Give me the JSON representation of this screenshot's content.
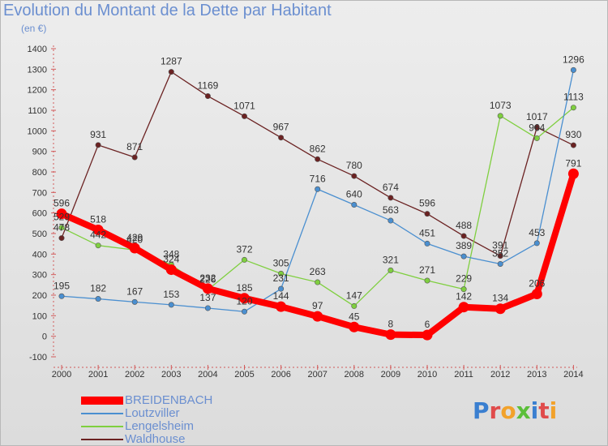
{
  "title": "Evolution du Montant de la Dette par Habitant",
  "unit": "(en €)",
  "logo": {
    "text": "Proxiti"
  },
  "chart_data": {
    "type": "line",
    "x": [
      "2000",
      "2001",
      "2002",
      "2003",
      "2004",
      "2005",
      "2006",
      "2007",
      "2008",
      "2009",
      "2010",
      "2011",
      "2012",
      "2013",
      "2014"
    ],
    "ylim": [
      -100,
      1400
    ],
    "yticks": [
      -100,
      0,
      100,
      200,
      300,
      400,
      500,
      600,
      700,
      800,
      900,
      1000,
      1100,
      1200,
      1300,
      1400
    ],
    "grid": false,
    "legend_position": "bottom",
    "series": [
      {
        "name": "Waldhouse",
        "color": "#6b2222",
        "values": [
          478,
          931,
          871,
          1287,
          1169,
          1071,
          967,
          862,
          780,
          674,
          596,
          488,
          391,
          1017,
          930
        ]
      },
      {
        "name": "Lengelsheim",
        "color": "#7fcf3f",
        "values": [
          529,
          442,
          420,
          348,
          226,
          372,
          305,
          263,
          147,
          321,
          271,
          229,
          1073,
          964,
          1113
        ]
      },
      {
        "name": "Loutzviller",
        "color": "#4a8fd0",
        "values": [
          195,
          182,
          167,
          153,
          137,
          120,
          231,
          716,
          640,
          563,
          451,
          389,
          352,
          453,
          1296
        ]
      },
      {
        "name": "BREIDENBACH",
        "color": "#ff0000",
        "values": [
          596,
          518,
          429,
          324,
          232,
          185,
          144,
          97,
          45,
          8,
          6,
          142,
          134,
          206,
          791
        ]
      }
    ],
    "legend": [
      "BREIDENBACH",
      "Loutzviller",
      "Lengelsheim",
      "Waldhouse"
    ]
  }
}
